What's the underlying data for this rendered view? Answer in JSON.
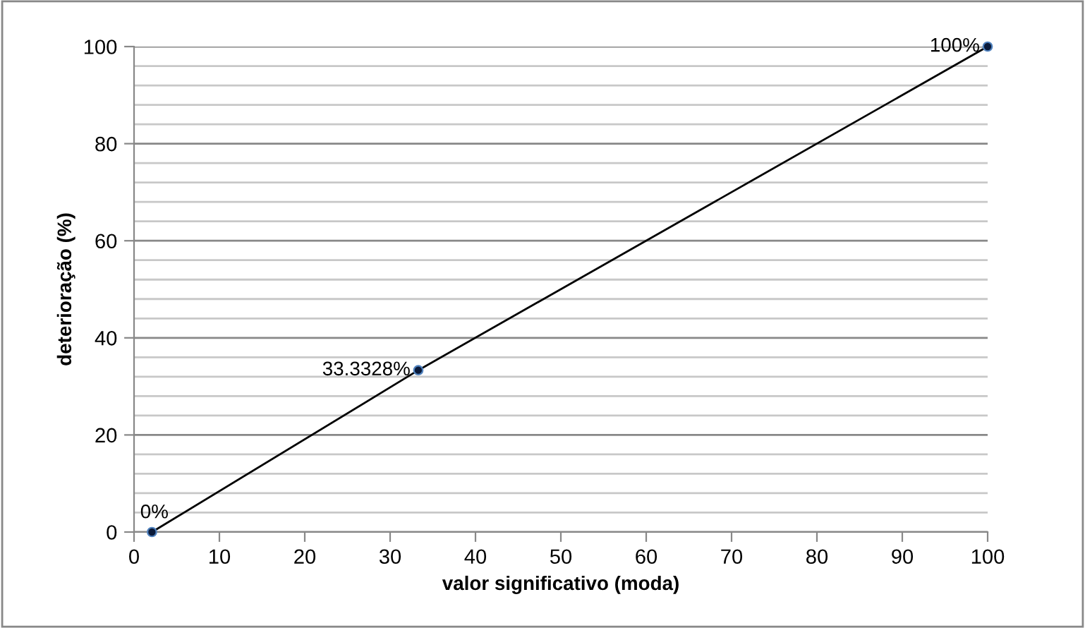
{
  "chart_data": {
    "type": "line",
    "xlabel": "valor significativo (moda)",
    "ylabel": "deterioração (%)",
    "series": [
      {
        "color": "#000000",
        "x": [
          2.1,
          33.3,
          100
        ],
        "values": [
          0,
          33.3328,
          100
        ],
        "value_labels": [
          "0%",
          "33.3328%",
          "100%"
        ]
      }
    ],
    "xlim": [
      0,
      100
    ],
    "xticks": [
      0,
      10,
      20,
      30,
      40,
      50,
      60,
      70,
      80,
      90,
      100
    ],
    "ylim": [
      0,
      100
    ],
    "yticks": [
      0,
      {
        "value": 4,
        "label": null
      },
      {
        "value": 8,
        "label": null
      },
      {
        "value": 12,
        "label": null
      },
      {
        "value": 16,
        "label": null
      },
      20,
      {
        "value": 24,
        "label": null
      },
      {
        "value": 28,
        "label": null
      },
      {
        "value": 32,
        "label": null
      },
      {
        "value": 36,
        "label": null
      },
      40,
      {
        "value": 44,
        "label": null
      },
      {
        "value": 48,
        "label": null
      },
      {
        "value": 52,
        "label": null
      },
      {
        "value": 56,
        "label": null
      },
      60,
      {
        "value": 64,
        "label": null
      },
      {
        "value": 68,
        "label": null
      },
      {
        "value": 72,
        "label": null
      },
      {
        "value": 76,
        "label": null
      },
      80,
      {
        "value": 84,
        "label": null
      },
      {
        "value": 88,
        "label": null
      },
      {
        "value": 92,
        "label": null
      },
      {
        "value": 96,
        "label": null
      },
      100
    ],
    "grid": "y",
    "marker": "circle",
    "line_style": "solid",
    "legend": false
  }
}
